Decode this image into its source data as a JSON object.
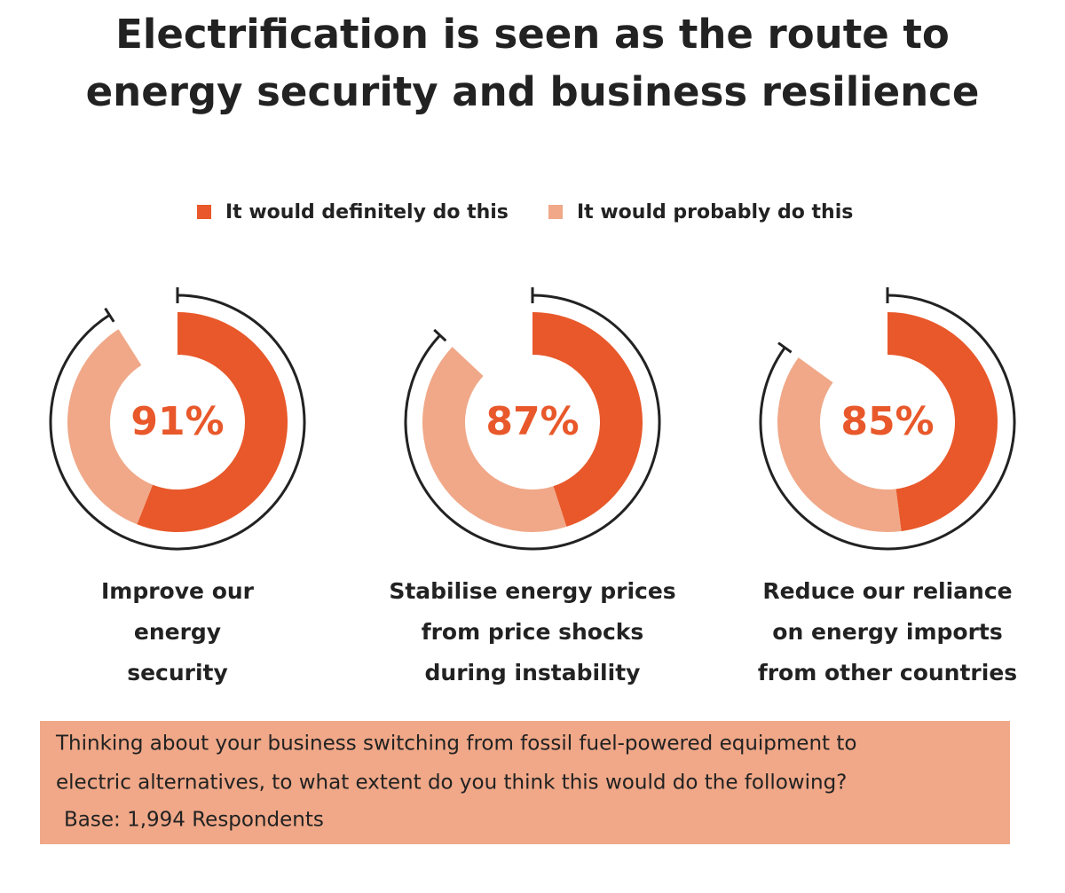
{
  "chart_data": {
    "type": "donut",
    "title": [
      "Electrification is seen as the route to",
      "energy security and business resilience"
    ],
    "categories": [
      [
        "Improve our",
        "energy",
        "security"
      ],
      [
        "Stabilise energy prices",
        "from price shocks",
        "during instability"
      ],
      [
        "Reduce our reliance",
        "on energy imports",
        "from other countries"
      ]
    ],
    "series": [
      {
        "name": "It would definitely do this",
        "color": "#e8582a",
        "values": [
          56,
          45,
          48
        ]
      },
      {
        "name": "It would probably do this",
        "color": "#f0a888",
        "values": [
          35,
          42,
          37
        ]
      }
    ],
    "totals": {
      "values": [
        91,
        87,
        85
      ],
      "value_labels": [
        "91%",
        "87%",
        "85%"
      ],
      "color": "#e8582a"
    },
    "note": [
      "Thinking about your business switching from fossil fuel-powered equipment to",
      "electric alternatives, to what extent do you think this would do the following?",
      "Base: 1,994 Respondents"
    ]
  }
}
